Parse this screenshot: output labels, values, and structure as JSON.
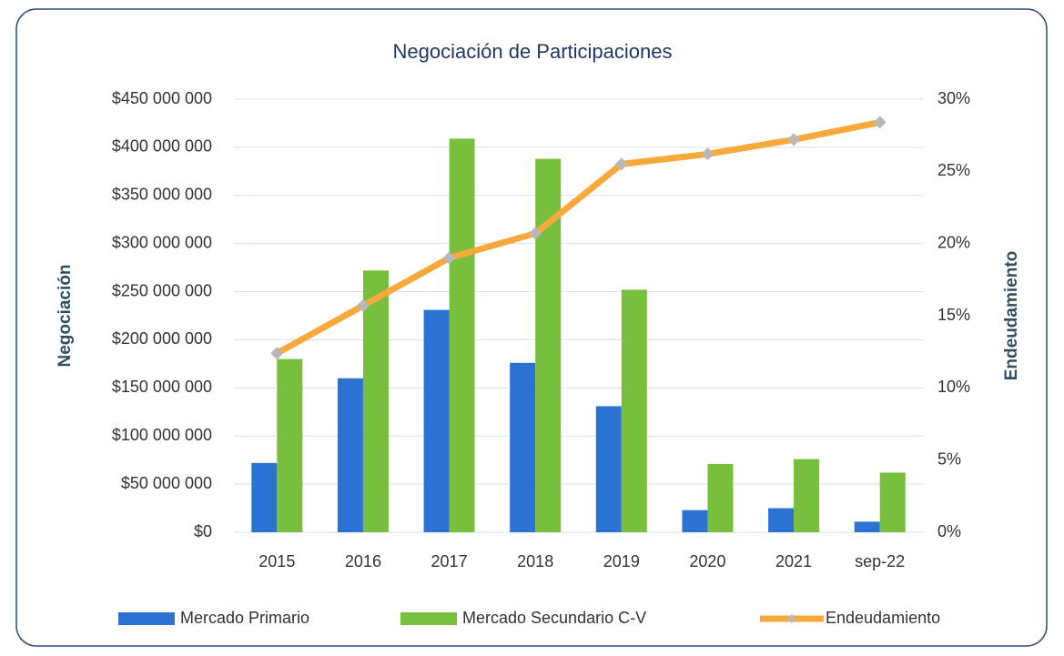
{
  "chart_data": {
    "type": "bar_line",
    "title": "Negociación de Participaciones",
    "y_label": "Negociación",
    "y2_label": "Endeudamiento",
    "categories": [
      "2015",
      "2016",
      "2017",
      "2018",
      "2019",
      "2020",
      "2021",
      "sep-22"
    ],
    "series": [
      {
        "name": "Mercado Primario",
        "type": "bar",
        "color": "#2b72d2",
        "values": [
          72000000,
          160000000,
          231000000,
          176000000,
          131000000,
          23000000,
          25000000,
          11000000
        ]
      },
      {
        "name": "Mercado Secundario C-V",
        "type": "bar",
        "color": "#78bf3e",
        "values": [
          180000000,
          272000000,
          409000000,
          388000000,
          252000000,
          71000000,
          76000000,
          62000000
        ]
      },
      {
        "name": "Endeudamiento",
        "type": "line",
        "axis": "y2",
        "color": "#f7a93b",
        "marker_color": "#b8b8b8",
        "values": [
          12.4,
          15.7,
          19.0,
          20.7,
          25.5,
          26.2,
          27.2,
          28.4
        ]
      }
    ],
    "ylim": [
      0,
      450000000
    ],
    "yticks": [
      {
        "value": 0,
        "label": "$0"
      },
      {
        "value": 50000000,
        "label": "$50 000 000"
      },
      {
        "value": 100000000,
        "label": "$100 000 000"
      },
      {
        "value": 150000000,
        "label": "$150 000 000"
      },
      {
        "value": 200000000,
        "label": "$200 000 000"
      },
      {
        "value": 250000000,
        "label": "$250 000 000"
      },
      {
        "value": 300000000,
        "label": "$300 000 000"
      },
      {
        "value": 350000000,
        "label": "$350 000 000"
      },
      {
        "value": 400000000,
        "label": "$400 000 000"
      },
      {
        "value": 450000000,
        "label": "$450 000 000"
      }
    ],
    "y2lim": [
      0,
      30
    ],
    "y2ticks": [
      {
        "value": 0,
        "label": "0%"
      },
      {
        "value": 5,
        "label": "5%"
      },
      {
        "value": 10,
        "label": "10%"
      },
      {
        "value": 15,
        "label": "15%"
      },
      {
        "value": 20,
        "label": "20%"
      },
      {
        "value": 25,
        "label": "25%"
      },
      {
        "value": 30,
        "label": "30%"
      }
    ],
    "grid": true,
    "legend": "bottom"
  }
}
